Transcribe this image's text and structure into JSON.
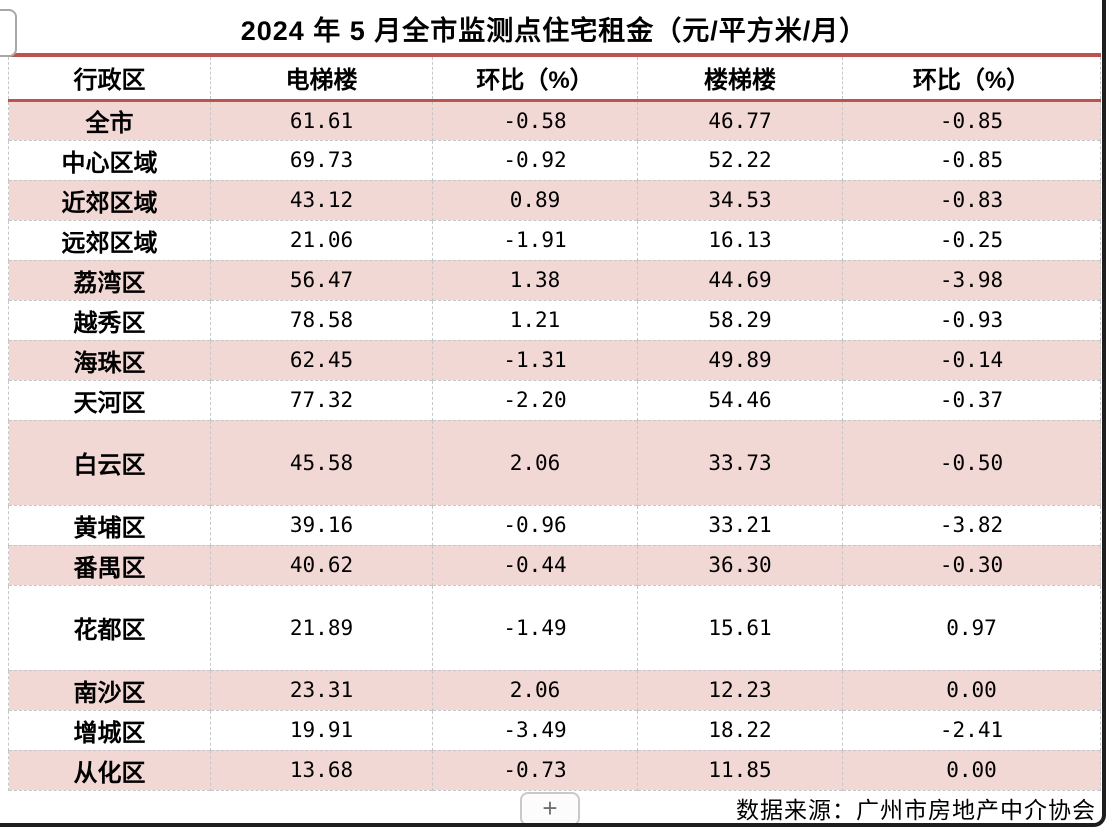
{
  "chart_data": {
    "type": "table",
    "title": "2024 年 5 月全市监测点住宅租金（元/平方米/月）",
    "columns": [
      "行政区",
      "电梯楼",
      "环比（%）",
      "楼梯楼",
      "环比（%）"
    ],
    "rows": [
      {
        "region": "全市",
        "values": [
          "61.61",
          "-0.58",
          "46.77",
          "-0.85"
        ]
      },
      {
        "region": "中心区域",
        "values": [
          "69.73",
          "-0.92",
          "52.22",
          "-0.85"
        ]
      },
      {
        "region": "近郊区域",
        "values": [
          "43.12",
          "0.89",
          "34.53",
          "-0.83"
        ]
      },
      {
        "region": "远郊区域",
        "values": [
          "21.06",
          "-1.91",
          "16.13",
          "-0.25"
        ]
      },
      {
        "region": "荔湾区",
        "values": [
          "56.47",
          "1.38",
          "44.69",
          "-3.98"
        ]
      },
      {
        "region": "越秀区",
        "values": [
          "78.58",
          "1.21",
          "58.29",
          "-0.93"
        ]
      },
      {
        "region": "海珠区",
        "values": [
          "62.45",
          "-1.31",
          "49.89",
          "-0.14"
        ]
      },
      {
        "region": "天河区",
        "values": [
          "77.32",
          "-2.20",
          "54.46",
          "-0.37"
        ]
      },
      {
        "region": "白云区",
        "values": [
          "45.58",
          "2.06",
          "33.73",
          "-0.50"
        ]
      },
      {
        "region": "黄埔区",
        "values": [
          "39.16",
          "-0.96",
          "33.21",
          "-3.82"
        ]
      },
      {
        "region": "番禺区",
        "values": [
          "40.62",
          "-0.44",
          "36.30",
          "-0.30"
        ]
      },
      {
        "region": "花都区",
        "values": [
          "21.89",
          "-1.49",
          "15.61",
          "0.97"
        ]
      },
      {
        "region": "南沙区",
        "values": [
          "23.31",
          "2.06",
          "12.23",
          "0.00"
        ]
      },
      {
        "region": "增城区",
        "values": [
          "19.91",
          "-3.49",
          "18.22",
          "-2.41"
        ]
      },
      {
        "region": "从化区",
        "values": [
          "13.68",
          "-0.73",
          "11.85",
          "0.00"
        ]
      }
    ],
    "source": "数据来源：广州市房地产中介协会",
    "layout_hints": {
      "striped_rows": true,
      "stripe_color": "#f2d8d5",
      "header_rule_color": "#bd5350",
      "grid": "dashed"
    }
  },
  "controls": {
    "add_button_label": "+"
  },
  "colors": {
    "accent_red": "#bd5350",
    "row_pink": "#f2d8d5",
    "grid_gray": "#c6c6c6",
    "frame_dark": "#1e1e1e"
  }
}
